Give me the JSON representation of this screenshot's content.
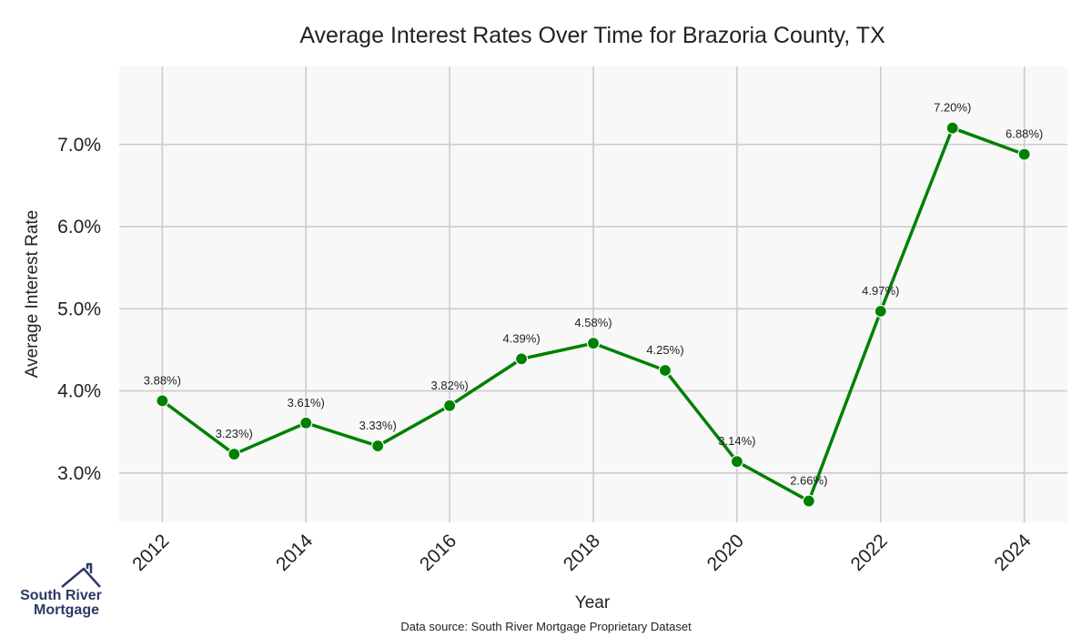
{
  "chart_data": {
    "type": "line",
    "title": "Average Interest Rates Over Time for Brazoria County, TX",
    "xlabel": "Year",
    "ylabel": "Average Interest Rate",
    "x": [
      2012,
      2013,
      2014,
      2015,
      2016,
      2017,
      2018,
      2019,
      2020,
      2021,
      2022,
      2023,
      2024
    ],
    "series": [
      {
        "values": [
          3.88,
          3.23,
          3.61,
          3.33,
          3.82,
          4.39,
          4.58,
          4.25,
          3.14,
          2.66,
          4.97,
          7.2,
          6.88
        ],
        "color": "#008000"
      }
    ],
    "point_labels": [
      "3.88%)",
      "3.23%)",
      "3.61%)",
      "3.33%)",
      "3.82%)",
      "4.39%)",
      "4.58%)",
      "4.25%)",
      "3.14%)",
      "2.66%)",
      "4.97%)",
      "7.20%)",
      "6.88%)"
    ],
    "x_ticks": [
      2012,
      2014,
      2016,
      2018,
      2020,
      2022,
      2024
    ],
    "x_tick_labels": [
      "2012",
      "2014",
      "2016",
      "2018",
      "2020",
      "2022",
      "2024"
    ],
    "y_ticks": [
      3.0,
      4.0,
      5.0,
      6.0,
      7.0
    ],
    "y_tick_labels": [
      "3.0%",
      "4.0%",
      "5.0%",
      "6.0%",
      "7.0%"
    ],
    "xlim": [
      2011.4,
      2024.6
    ],
    "ylim": [
      2.4,
      7.95
    ],
    "grid": true,
    "background": "#f8f8f8",
    "grid_color": "#cccccc"
  },
  "footer": {
    "source": "Data source: South River Mortgage Proprietary Dataset"
  },
  "logo": {
    "line1": "South River",
    "line2": "Mortgage",
    "icon": "house-roof-icon",
    "color": "#2b3a66"
  }
}
